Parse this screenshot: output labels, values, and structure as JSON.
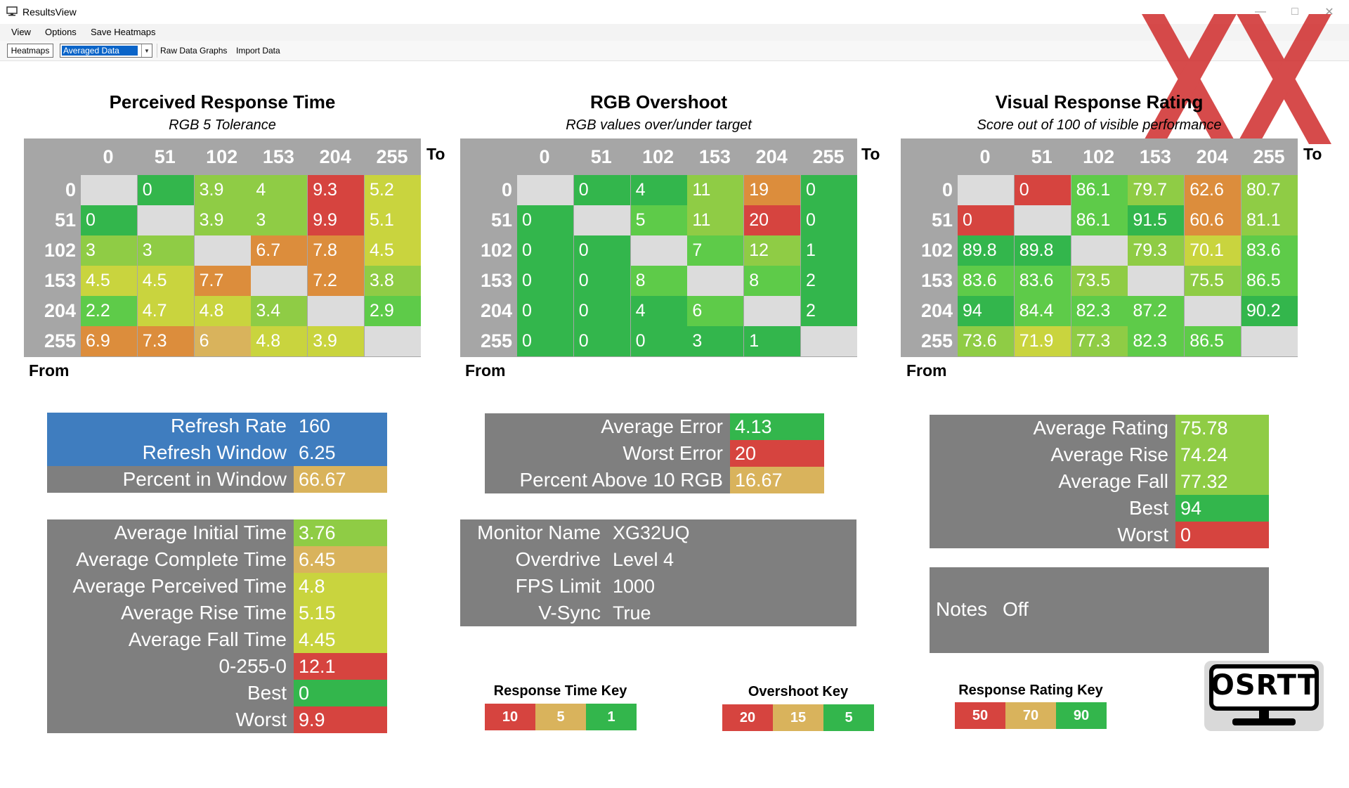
{
  "window": {
    "title": "ResultsView",
    "icon": "monitor-app-icon"
  },
  "menu": {
    "items": [
      "View",
      "Options",
      "Save Heatmaps"
    ]
  },
  "toolbar": {
    "heatmaps_label": "Heatmaps",
    "mode_selected": "Averaged Data",
    "raw_data_graphs_label": "Raw Data Graphs",
    "import_data_label": "Import Data"
  },
  "colors": {
    "green": "#33b64c",
    "light_green": "#5ecb49",
    "yellow_green": "#8fcc45",
    "yellow": "#c9d43e",
    "tan": "#d9b35c",
    "orange": "#dc8d3c",
    "red": "#d6443f",
    "diag": "#dcdcdc",
    "header_gray": "#a6a6a6",
    "panel_gray": "#7f7f7f",
    "blue": "#3f7dbf"
  },
  "heatmaps": {
    "axis_to": "To",
    "axis_from": "From",
    "levels": [
      "0",
      "51",
      "102",
      "153",
      "204",
      "255"
    ],
    "perceived": {
      "title": "Perceived Response Time",
      "subtitle": "RGB 5 Tolerance",
      "rows": [
        [
          {
            "v": "",
            "c": "diag"
          },
          {
            "v": "0",
            "c": "green"
          },
          {
            "v": "3.9",
            "c": "yellow_green"
          },
          {
            "v": "4",
            "c": "yellow_green"
          },
          {
            "v": "9.3",
            "c": "red"
          },
          {
            "v": "5.2",
            "c": "yellow"
          }
        ],
        [
          {
            "v": "0",
            "c": "green"
          },
          {
            "v": "",
            "c": "diag"
          },
          {
            "v": "3.9",
            "c": "yellow_green"
          },
          {
            "v": "3",
            "c": "yellow_green"
          },
          {
            "v": "9.9",
            "c": "red"
          },
          {
            "v": "5.1",
            "c": "yellow"
          }
        ],
        [
          {
            "v": "3",
            "c": "yellow_green"
          },
          {
            "v": "3",
            "c": "yellow_green"
          },
          {
            "v": "",
            "c": "diag"
          },
          {
            "v": "6.7",
            "c": "orange"
          },
          {
            "v": "7.8",
            "c": "orange"
          },
          {
            "v": "4.5",
            "c": "yellow"
          }
        ],
        [
          {
            "v": "4.5",
            "c": "yellow"
          },
          {
            "v": "4.5",
            "c": "yellow"
          },
          {
            "v": "7.7",
            "c": "orange"
          },
          {
            "v": "",
            "c": "diag"
          },
          {
            "v": "7.2",
            "c": "orange"
          },
          {
            "v": "3.8",
            "c": "yellow_green"
          }
        ],
        [
          {
            "v": "2.2",
            "c": "light_green"
          },
          {
            "v": "4.7",
            "c": "yellow"
          },
          {
            "v": "4.8",
            "c": "yellow"
          },
          {
            "v": "3.4",
            "c": "yellow_green"
          },
          {
            "v": "",
            "c": "diag"
          },
          {
            "v": "2.9",
            "c": "light_green"
          }
        ],
        [
          {
            "v": "6.9",
            "c": "orange"
          },
          {
            "v": "7.3",
            "c": "orange"
          },
          {
            "v": "6",
            "c": "tan"
          },
          {
            "v": "4.8",
            "c": "yellow"
          },
          {
            "v": "3.9",
            "c": "yellow"
          },
          {
            "v": "",
            "c": "diag"
          }
        ]
      ]
    },
    "overshoot": {
      "title": "RGB Overshoot",
      "subtitle": "RGB values over/under target",
      "rows": [
        [
          {
            "v": "",
            "c": "diag"
          },
          {
            "v": "0",
            "c": "green"
          },
          {
            "v": "4",
            "c": "green"
          },
          {
            "v": "11",
            "c": "yellow_green"
          },
          {
            "v": "19",
            "c": "orange"
          },
          {
            "v": "0",
            "c": "green"
          }
        ],
        [
          {
            "v": "0",
            "c": "green"
          },
          {
            "v": "",
            "c": "diag"
          },
          {
            "v": "5",
            "c": "light_green"
          },
          {
            "v": "11",
            "c": "yellow_green"
          },
          {
            "v": "20",
            "c": "red"
          },
          {
            "v": "0",
            "c": "green"
          }
        ],
        [
          {
            "v": "0",
            "c": "green"
          },
          {
            "v": "0",
            "c": "green"
          },
          {
            "v": "",
            "c": "diag"
          },
          {
            "v": "7",
            "c": "light_green"
          },
          {
            "v": "12",
            "c": "yellow_green"
          },
          {
            "v": "1",
            "c": "green"
          }
        ],
        [
          {
            "v": "0",
            "c": "green"
          },
          {
            "v": "0",
            "c": "green"
          },
          {
            "v": "8",
            "c": "light_green"
          },
          {
            "v": "",
            "c": "diag"
          },
          {
            "v": "8",
            "c": "light_green"
          },
          {
            "v": "2",
            "c": "green"
          }
        ],
        [
          {
            "v": "0",
            "c": "green"
          },
          {
            "v": "0",
            "c": "green"
          },
          {
            "v": "4",
            "c": "green"
          },
          {
            "v": "6",
            "c": "light_green"
          },
          {
            "v": "",
            "c": "diag"
          },
          {
            "v": "2",
            "c": "green"
          }
        ],
        [
          {
            "v": "0",
            "c": "green"
          },
          {
            "v": "0",
            "c": "green"
          },
          {
            "v": "0",
            "c": "green"
          },
          {
            "v": "3",
            "c": "green"
          },
          {
            "v": "1",
            "c": "green"
          },
          {
            "v": "",
            "c": "diag"
          }
        ]
      ]
    },
    "rating": {
      "title": "Visual Response Rating",
      "subtitle": "Score out of 100 of visible performance",
      "rows": [
        [
          {
            "v": "",
            "c": "diag"
          },
          {
            "v": "0",
            "c": "red"
          },
          {
            "v": "86.1",
            "c": "light_green"
          },
          {
            "v": "79.7",
            "c": "yellow_green"
          },
          {
            "v": "62.6",
            "c": "orange"
          },
          {
            "v": "80.7",
            "c": "yellow_green"
          }
        ],
        [
          {
            "v": "0",
            "c": "red"
          },
          {
            "v": "",
            "c": "diag"
          },
          {
            "v": "86.1",
            "c": "light_green"
          },
          {
            "v": "91.5",
            "c": "green"
          },
          {
            "v": "60.6",
            "c": "orange"
          },
          {
            "v": "81.1",
            "c": "yellow_green"
          }
        ],
        [
          {
            "v": "89.8",
            "c": "green"
          },
          {
            "v": "89.8",
            "c": "green"
          },
          {
            "v": "",
            "c": "diag"
          },
          {
            "v": "79.3",
            "c": "yellow_green"
          },
          {
            "v": "70.1",
            "c": "yellow"
          },
          {
            "v": "83.6",
            "c": "light_green"
          }
        ],
        [
          {
            "v": "83.6",
            "c": "light_green"
          },
          {
            "v": "83.6",
            "c": "light_green"
          },
          {
            "v": "73.5",
            "c": "yellow_green"
          },
          {
            "v": "",
            "c": "diag"
          },
          {
            "v": "75.5",
            "c": "yellow_green"
          },
          {
            "v": "86.5",
            "c": "light_green"
          }
        ],
        [
          {
            "v": "94",
            "c": "green"
          },
          {
            "v": "84.4",
            "c": "light_green"
          },
          {
            "v": "82.3",
            "c": "light_green"
          },
          {
            "v": "87.2",
            "c": "light_green"
          },
          {
            "v": "",
            "c": "diag"
          },
          {
            "v": "90.2",
            "c": "green"
          }
        ],
        [
          {
            "v": "73.6",
            "c": "yellow_green"
          },
          {
            "v": "71.9",
            "c": "yellow"
          },
          {
            "v": "77.3",
            "c": "yellow_green"
          },
          {
            "v": "82.3",
            "c": "light_green"
          },
          {
            "v": "86.5",
            "c": "light_green"
          },
          {
            "v": "",
            "c": "diag"
          }
        ]
      ]
    }
  },
  "refresh_panel": [
    {
      "label": "Refresh Rate",
      "value": "160",
      "lc": "blue",
      "vc": "blue"
    },
    {
      "label": "Refresh Window",
      "value": "6.25",
      "lc": "blue",
      "vc": "blue"
    },
    {
      "label": "Percent in Window",
      "value": "66.67",
      "lc": "panel_gray",
      "vc": "tan"
    }
  ],
  "time_panel": [
    {
      "label": "Average Initial Time",
      "value": "3.76",
      "vc": "yellow_green"
    },
    {
      "label": "Average Complete Time",
      "value": "6.45",
      "vc": "tan"
    },
    {
      "label": "Average Perceived Time",
      "value": "4.8",
      "vc": "yellow"
    },
    {
      "label": "Average Rise Time",
      "value": "5.15",
      "vc": "yellow"
    },
    {
      "label": "Average Fall Time",
      "value": "4.45",
      "vc": "yellow"
    },
    {
      "label": "0-255-0",
      "value": "12.1",
      "vc": "red"
    },
    {
      "label": "Best",
      "value": "0",
      "vc": "green"
    },
    {
      "label": "Worst",
      "value": "9.9",
      "vc": "red"
    }
  ],
  "error_panel": [
    {
      "label": "Average Error",
      "value": "4.13",
      "vc": "green"
    },
    {
      "label": "Worst Error",
      "value": "20",
      "vc": "red"
    },
    {
      "label": "Percent Above 10 RGB",
      "value": "16.67",
      "vc": "tan"
    }
  ],
  "monitor_panel": [
    {
      "label": "Monitor Name",
      "value": "XG32UQ"
    },
    {
      "label": "Overdrive",
      "value": "Level 4"
    },
    {
      "label": "FPS Limit",
      "value": "1000"
    },
    {
      "label": "V-Sync",
      "value": "True"
    }
  ],
  "rating_panel": [
    {
      "label": "Average Rating",
      "value": "75.78",
      "vc": "yellow_green"
    },
    {
      "label": "Average Rise",
      "value": "74.24",
      "vc": "yellow_green"
    },
    {
      "label": "Average Fall",
      "value": "77.32",
      "vc": "yellow_green"
    },
    {
      "label": "Best",
      "value": "94",
      "vc": "green"
    },
    {
      "label": "Worst",
      "value": "0",
      "vc": "red"
    }
  ],
  "notes": {
    "label": "Notes",
    "value": "Off"
  },
  "keys": {
    "response_time": {
      "title": "Response Time Key",
      "items": [
        {
          "v": "10",
          "c": "red"
        },
        {
          "v": "5",
          "c": "tan"
        },
        {
          "v": "1",
          "c": "green"
        }
      ]
    },
    "overshoot": {
      "title": "Overshoot Key",
      "items": [
        {
          "v": "20",
          "c": "red"
        },
        {
          "v": "15",
          "c": "tan"
        },
        {
          "v": "5",
          "c": "green"
        }
      ]
    },
    "rating": {
      "title": "Response Rating Key",
      "items": [
        {
          "v": "50",
          "c": "red"
        },
        {
          "v": "70",
          "c": "tan"
        },
        {
          "v": "90",
          "c": "green"
        }
      ]
    }
  },
  "logo": {
    "text": "OSRTT",
    "icon": "osrtt-monitor-logo"
  }
}
